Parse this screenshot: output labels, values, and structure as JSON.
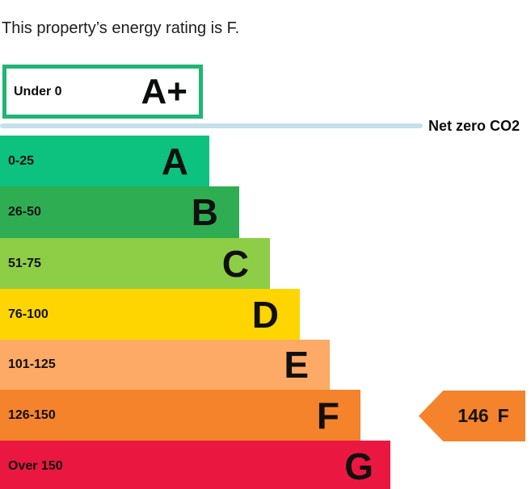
{
  "title": "This property’s energy rating is F.",
  "net_zero": {
    "label": "Net zero CO2",
    "line_color": "#c3e0eb"
  },
  "chart_data": {
    "type": "bar",
    "description_visible_text": "This property’s energy rating is F.",
    "bands": [
      {
        "label": "Under 0",
        "letter": "A+",
        "fill": "#ffffff",
        "border": "#1fb573"
      },
      {
        "label": "0-25",
        "letter": "A",
        "fill": "#0cc27e"
      },
      {
        "label": "26-50",
        "letter": "B",
        "fill": "#2fad52"
      },
      {
        "label": "51-75",
        "letter": "C",
        "fill": "#8dce46"
      },
      {
        "label": "76-100",
        "letter": "D",
        "fill": "#ffd500"
      },
      {
        "label": "101-125",
        "letter": "E",
        "fill": "#fcaa65"
      },
      {
        "label": "126-150",
        "letter": "F",
        "fill": "#f5832b"
      },
      {
        "label": "Over 150",
        "letter": "G",
        "fill": "#ea1840"
      }
    ],
    "current_rating": {
      "value": "146",
      "band": "F",
      "arrow_color": "#f5832b"
    }
  }
}
